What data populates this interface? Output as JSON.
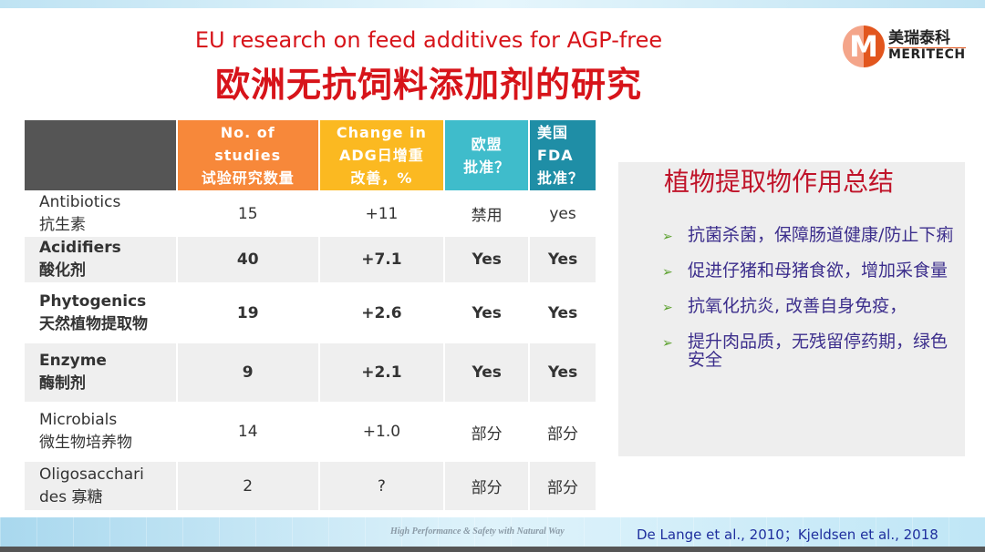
{
  "title_en": "EU research on feed additives for AGP-free",
  "title_cn": "欧洲无抗饲料添加剂的研究",
  "logo": {
    "cn": "美瑞泰科",
    "en": "MERITECH",
    "mark": "M"
  },
  "colors": {
    "orange": "#f7883a",
    "yellow": "#fbb921",
    "teal": "#3fbccb",
    "darkteal": "#1f8ea6",
    "header_gray": "#555555",
    "title_red": "#d7141a"
  },
  "table": {
    "headers": [
      {
        "lines": [
          "",
          ""
        ]
      },
      {
        "lines": [
          "No. of",
          "studies",
          "试验研究数量"
        ]
      },
      {
        "lines": [
          "Change in",
          "ADG日增重",
          "改善，%"
        ]
      },
      {
        "lines": [
          "欧盟",
          "批准？"
        ]
      },
      {
        "lines": [
          "美国",
          "FDA",
          "批准？"
        ]
      }
    ],
    "rows": [
      {
        "en": "Antibiotics",
        "cn": "抗生素",
        "n": "15",
        "adg": "+11",
        "eu": "禁用",
        "fda": "yes"
      },
      {
        "en": "Acidifiers",
        "cn": "酸化剂",
        "n": "40",
        "adg": "+7.1",
        "eu": "Yes",
        "fda": "Yes"
      },
      {
        "en": "Phytogenics",
        "cn": "天然植物提取物",
        "n": "19",
        "adg": "+2.6",
        "eu": "Yes",
        "fda": "Yes"
      },
      {
        "en": "Enzyme",
        "cn": "酶制剂",
        "n": "9",
        "adg": "+2.1",
        "eu": "Yes",
        "fda": "Yes"
      },
      {
        "en": "Microbials",
        "cn": "微生物培养物",
        "n": "14",
        "adg": "+1.0",
        "eu": "部分",
        "fda": "部分"
      },
      {
        "en": "Oligosacchari",
        "cn": "des 寡糖",
        "n": "2",
        "adg": "?",
        "eu": "部分",
        "fda": "部分"
      }
    ]
  },
  "summary": {
    "title": "植物提取物作用总结",
    "bullets": [
      "抗菌杀菌，保障肠道健康/防止下痢",
      "促进仔猪和母猪食欲，增加采食量",
      "抗氧化抗炎, 改善自身免疫，",
      "提升肉品质，无残留停药期，绿色安全"
    ]
  },
  "footer": {
    "slogan": "High Performance & Safety with Natural Way",
    "citation": "De Lange et al., 2010；Kjeldsen et al., 2018"
  }
}
